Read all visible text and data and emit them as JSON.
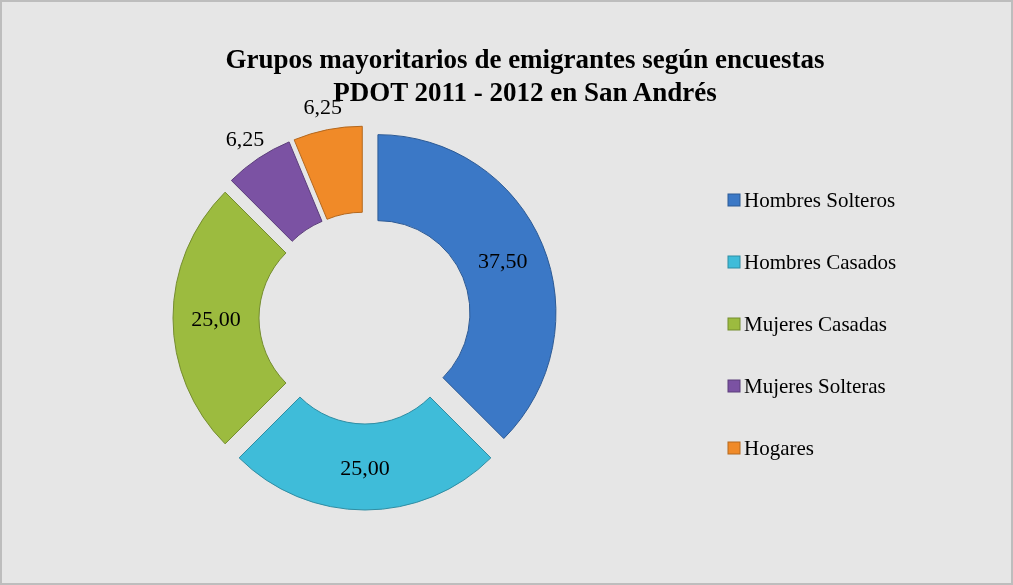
{
  "chart_data": {
    "type": "donut",
    "title": "Grupos mayoritarios de emigrantes  según encuestas\nPDOT 2011 - 2012 en San Andrés",
    "categories": [
      "Hombres Solteros",
      "Hombres Casados",
      "Mujeres Casadas",
      "Mujeres Solteras",
      "Hogares"
    ],
    "values": [
      37.5,
      25,
      25,
      6.25,
      6.25
    ],
    "colors": [
      "#3b78c6",
      "#3fbcd9",
      "#9cbb3f",
      "#7b52a3",
      "#f08a28"
    ],
    "value_labels": [
      "37,50",
      "25,00",
      "25,00",
      "6,25",
      "6,25"
    ],
    "legend": "right"
  }
}
